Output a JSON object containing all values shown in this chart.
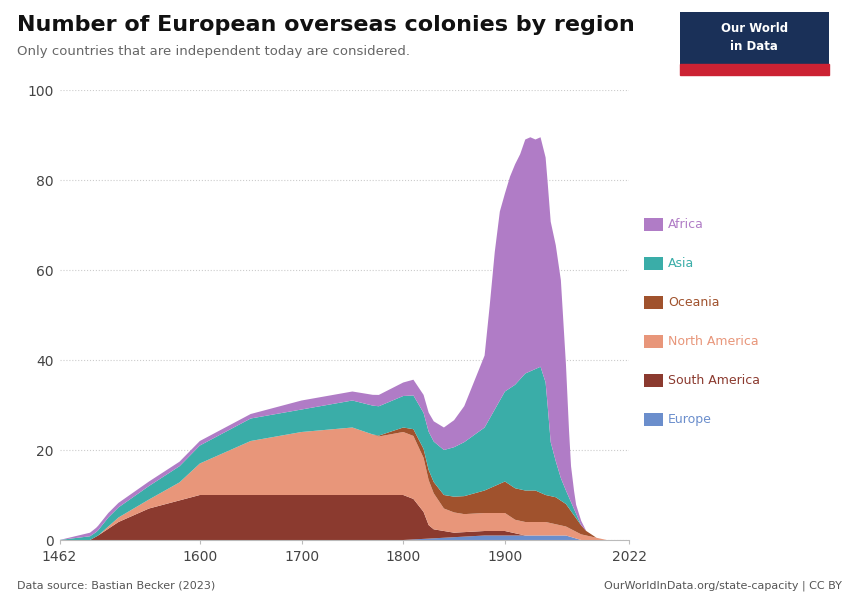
{
  "title": "Number of European overseas colonies by region",
  "subtitle": "Only countries that are independent today are considered.",
  "source": "Data source: Bastian Becker (2023)",
  "url": "OurWorldInData.org/state-capacity | CC BY",
  "logo_text": "Our World\nin Data",
  "ylim": [
    0,
    100
  ],
  "yticks": [
    0,
    20,
    40,
    60,
    80,
    100
  ],
  "xticks": [
    1462,
    1600,
    1700,
    1800,
    1900,
    2022
  ],
  "colors": {
    "Africa": "#b07cc6",
    "Asia": "#3aada8",
    "Oceania": "#a0522d",
    "North America": "#e8967a",
    "South America": "#8b3a2f",
    "Europe": "#6b8ecc"
  },
  "legend_order": [
    "Africa",
    "Asia",
    "Oceania",
    "North America",
    "South America",
    "Europe"
  ]
}
